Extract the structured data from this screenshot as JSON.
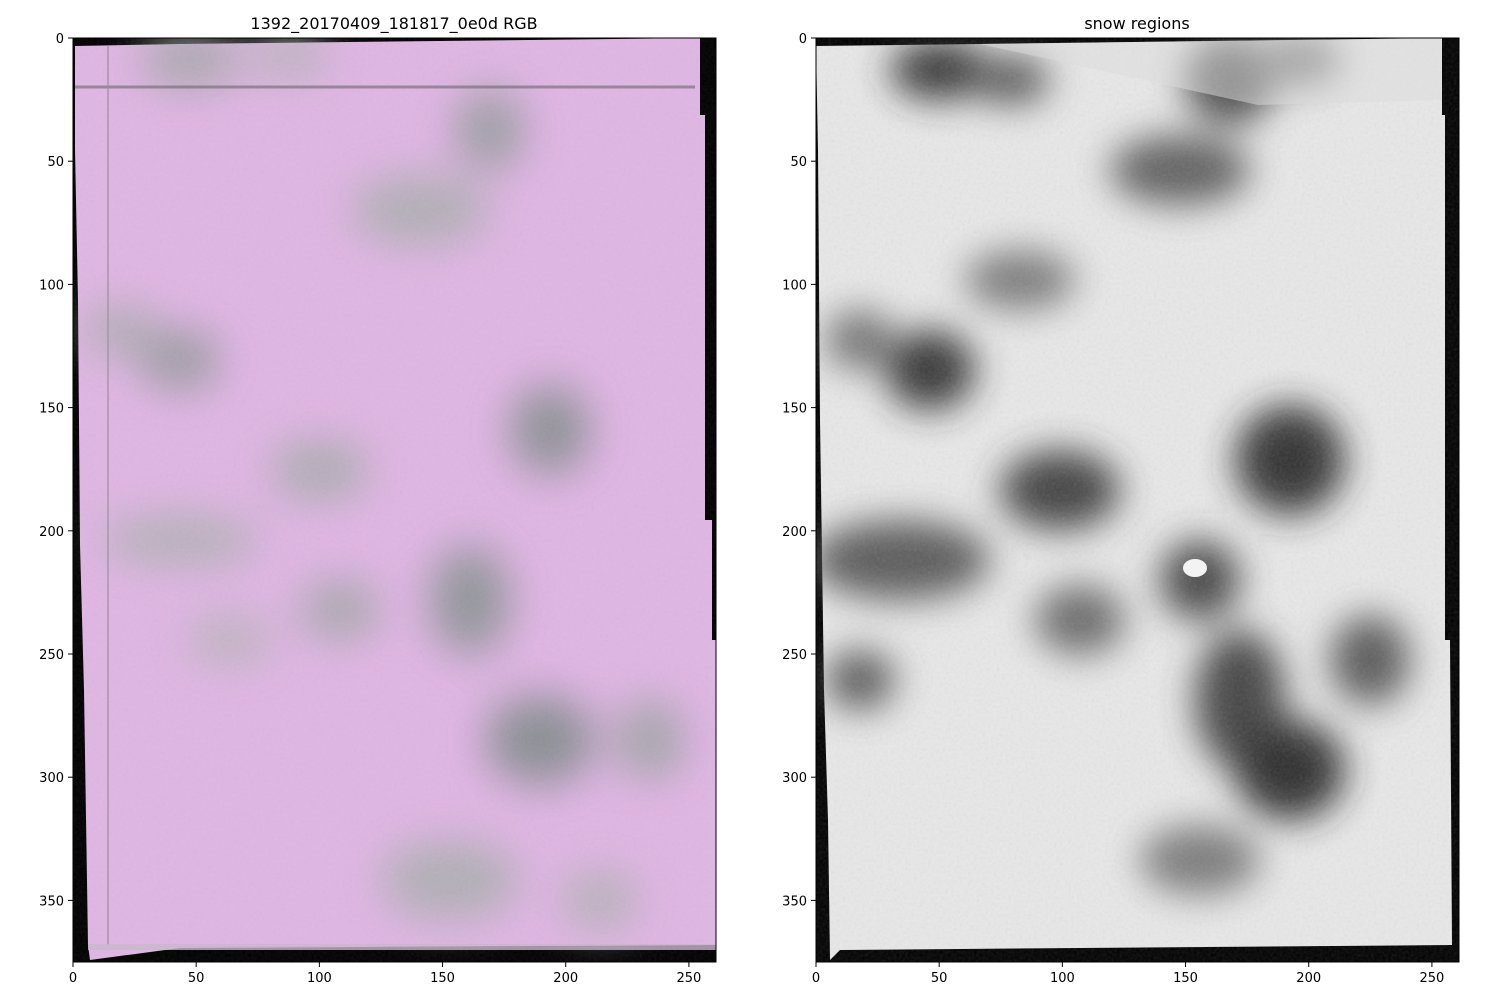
{
  "panels": [
    {
      "id": "left",
      "title": "1392_20170409_181817_0e0d RGB",
      "x_ticks": [
        "0",
        "50",
        "100",
        "150",
        "200",
        "250"
      ],
      "y_ticks": [
        "0",
        "50",
        "100",
        "150",
        "200",
        "250",
        "300",
        "350"
      ],
      "x_tick_values": [
        0,
        50,
        100,
        150,
        200,
        250
      ],
      "y_tick_values": [
        0,
        50,
        100,
        150,
        200,
        250,
        300,
        350
      ],
      "xlim": [
        0,
        261
      ],
      "ylim": [
        375,
        0
      ],
      "colors": {
        "base": "#e2b3e6",
        "shadow": "#8f9a96",
        "edge": "#000000"
      }
    },
    {
      "id": "right",
      "title": "snow regions",
      "x_ticks": [
        "0",
        "50",
        "100",
        "150",
        "200",
        "250"
      ],
      "y_ticks": [
        "0",
        "50",
        "100",
        "150",
        "200",
        "250",
        "300",
        "350"
      ],
      "x_tick_values": [
        0,
        50,
        100,
        150,
        200,
        250
      ],
      "y_tick_values": [
        0,
        50,
        100,
        150,
        200,
        250,
        300,
        350
      ],
      "xlim": [
        0,
        261
      ],
      "ylim": [
        375,
        0
      ],
      "colors": {
        "base": "#e6e6e6",
        "shadow": "#3a3a3a",
        "edge": "#000000"
      }
    }
  ]
}
